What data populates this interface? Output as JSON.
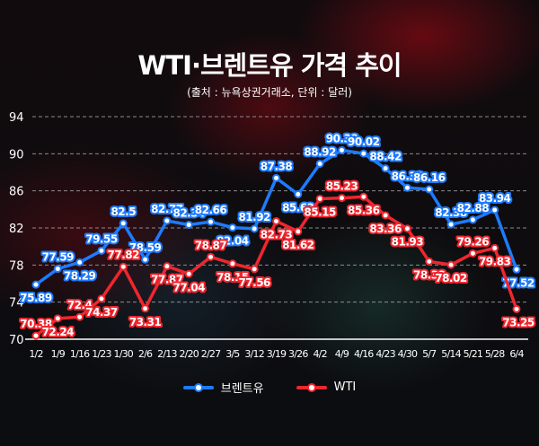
{
  "title": "WTI·브렌트유 가격 추이",
  "subtitle": "(출처 : 뉴욕상권거래소, 단위 : 달러)",
  "chart_data": {
    "type": "line",
    "categories": [
      "1/2",
      "1/9",
      "1/16",
      "1/23",
      "1/30",
      "2/6",
      "2/13",
      "2/20",
      "2/27",
      "3/5",
      "3/12",
      "3/19",
      "3/26",
      "4/2",
      "4/9",
      "4/16",
      "4/23",
      "4/30",
      "5/7",
      "5/14",
      "5/21",
      "5/28",
      "6/4"
    ],
    "series": [
      {
        "name": "브렌트유",
        "color": "#1e7bff",
        "values": [
          75.89,
          77.59,
          78.29,
          79.55,
          82.5,
          78.59,
          82.77,
          82.34,
          82.66,
          82.04,
          81.92,
          87.38,
          85.63,
          88.92,
          90.38,
          90.02,
          88.42,
          86.33,
          86.16,
          82.38,
          82.88,
          83.94,
          77.52
        ]
      },
      {
        "name": "WTI",
        "color": "#f0262e",
        "values": [
          70.38,
          72.24,
          72.4,
          74.37,
          77.82,
          73.31,
          77.87,
          77.04,
          78.87,
          78.15,
          77.56,
          82.73,
          81.62,
          85.15,
          85.23,
          85.36,
          83.36,
          81.93,
          78.38,
          78.02,
          79.26,
          79.83,
          73.25
        ]
      }
    ],
    "yticks": [
      70,
      74,
      78,
      82,
      86,
      90,
      94
    ],
    "ylim": [
      70,
      94
    ],
    "grid": true,
    "legend": "bottom"
  }
}
